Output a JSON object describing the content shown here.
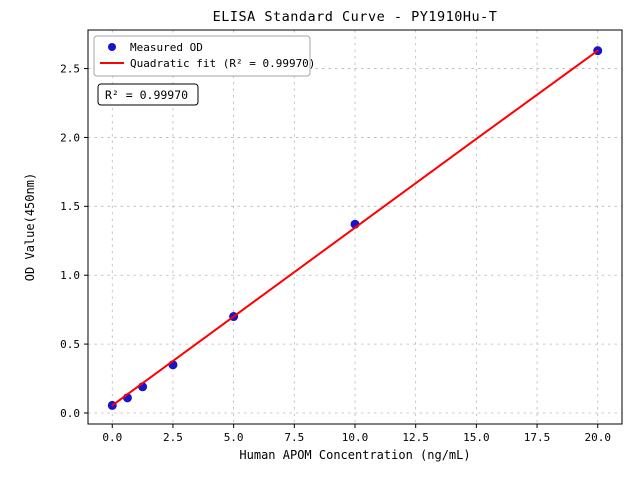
{
  "chart_data": {
    "type": "scatter",
    "title": "ELISA Standard Curve - PY1910Hu-T",
    "xlabel": "Human APOM Concentration (ng/mL)",
    "ylabel": "OD Value(450nm)",
    "xlim": [
      -1,
      21
    ],
    "ylim": [
      -0.08,
      2.78
    ],
    "xticks": [
      0.0,
      2.5,
      5.0,
      7.5,
      10.0,
      12.5,
      15.0,
      17.5,
      20.0
    ],
    "xtick_labels": [
      "0.0",
      "2.5",
      "5.0",
      "7.5",
      "10.0",
      "12.5",
      "15.0",
      "17.5",
      "20.0"
    ],
    "yticks": [
      0.0,
      0.5,
      1.0,
      1.5,
      2.0,
      2.5
    ],
    "ytick_labels": [
      "0.0",
      "0.5",
      "1.0",
      "1.5",
      "2.0",
      "2.5"
    ],
    "grid": true,
    "legend_position": "upper left",
    "series": [
      {
        "name": "Measured OD",
        "type": "scatter",
        "color": "#1515cc",
        "x": [
          0,
          0.625,
          1.25,
          2.5,
          5,
          10,
          20
        ],
        "y": [
          0.055,
          0.11,
          0.19,
          0.35,
          0.7,
          1.37,
          2.63
        ]
      },
      {
        "name": "Quadratic fit (R² = 0.99970)",
        "type": "line",
        "color": "#ff0000",
        "x": [
          0,
          5,
          10,
          15,
          20
        ],
        "y": [
          0.055,
          0.7,
          1.345,
          1.99,
          2.63
        ]
      }
    ],
    "annotation": "R² = 0.99970",
    "colors": {
      "grid": "#b8b8b8",
      "border": "#000000",
      "legend_border": "#a6a6a6",
      "annotation_border": "#000000"
    }
  }
}
